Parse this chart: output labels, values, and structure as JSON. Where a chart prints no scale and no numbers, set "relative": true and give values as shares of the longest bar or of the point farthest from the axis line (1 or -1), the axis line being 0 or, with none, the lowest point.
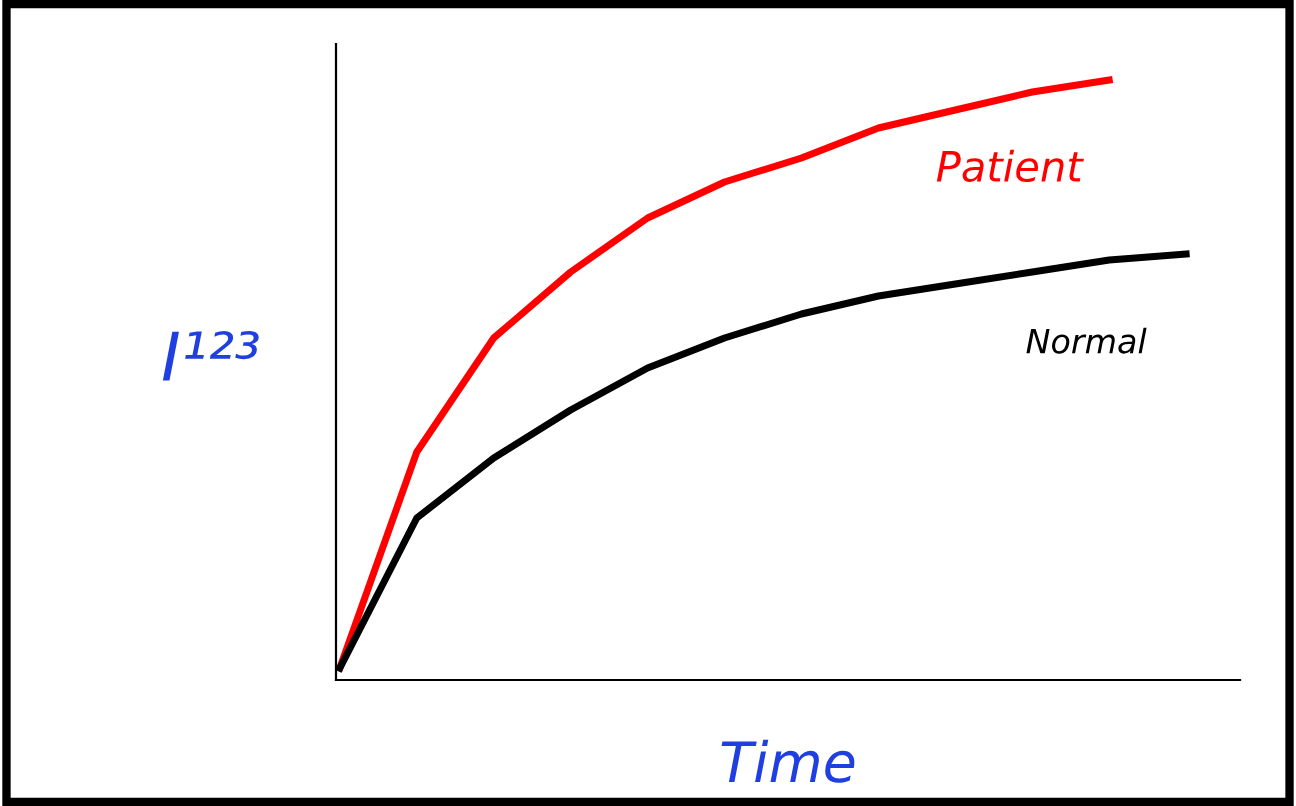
{
  "chart_data": {
    "type": "line",
    "relative": true,
    "xlabel": "Time",
    "ylabel": "I¹²³",
    "categories": [
      null,
      null,
      null,
      null,
      null,
      null,
      null,
      null,
      null,
      null,
      null,
      null
    ],
    "series": [
      {
        "name": "Patient",
        "color": "#ff0000",
        "values": [
          0.02,
          0.38,
          0.57,
          0.68,
          0.77,
          0.83,
          0.87,
          0.92,
          0.95,
          0.98,
          1.0,
          null
        ]
      },
      {
        "name": "Normal",
        "color": "#000000",
        "values": [
          0.02,
          0.27,
          0.37,
          0.45,
          0.52,
          0.57,
          0.61,
          0.64,
          0.66,
          0.68,
          0.7,
          0.71
        ]
      }
    ],
    "grid": false,
    "legend": false
  }
}
